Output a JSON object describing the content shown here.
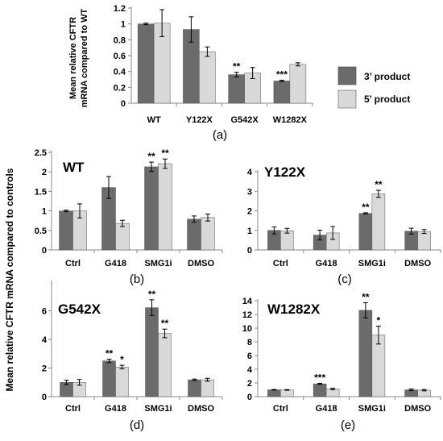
{
  "legend": [
    {
      "name": "3’ product",
      "color": "#6b6b6b"
    },
    {
      "name": "5’ product",
      "color": "#d9d9d9"
    }
  ],
  "shared_ylabel": "Mean relative CFTR mRNA compared to controls",
  "chart_data": [
    {
      "id": "a",
      "type": "bar",
      "panel_label": "(a)",
      "title": "",
      "ylabel": "Mean relative CFTR mRNA compared to WT",
      "categories": [
        "WT",
        "Y122X",
        "G542X",
        "W1282X"
      ],
      "ylim": [
        0,
        1.2
      ],
      "yticks": [
        0,
        0.2,
        0.4,
        0.6,
        0.8,
        1,
        1.2
      ],
      "ytick_labels": [
        "0",
        "0.2",
        "0.4",
        "0.6",
        "0.8",
        "1",
        "1.2"
      ],
      "series": [
        {
          "name": "3’ product",
          "color": "#6b6b6b",
          "values": [
            1.0,
            0.93,
            0.36,
            0.28
          ],
          "errors": [
            0.01,
            0.16,
            0.03,
            0.01
          ],
          "sig": [
            "",
            "",
            "**",
            "***"
          ]
        },
        {
          "name": "5’ product",
          "color": "#d9d9d9",
          "values": [
            1.01,
            0.65,
            0.38,
            0.49
          ],
          "errors": [
            0.17,
            0.06,
            0.07,
            0.02
          ],
          "sig": [
            "",
            "",
            "",
            ""
          ]
        }
      ]
    },
    {
      "id": "b",
      "type": "bar",
      "panel_label": "(b)",
      "title": "WT",
      "categories": [
        "Ctrl",
        "G418",
        "SMG1i",
        "DMSO"
      ],
      "ylim": [
        0,
        2.5
      ],
      "yticks": [
        0,
        0.5,
        1,
        1.5,
        2,
        2.5
      ],
      "ytick_labels": [
        "0",
        "0.5",
        "1",
        "1.5",
        "2",
        "2.5"
      ],
      "series": [
        {
          "name": "3’ product",
          "color": "#6b6b6b",
          "values": [
            1.0,
            1.6,
            2.13,
            0.79
          ],
          "errors": [
            0.02,
            0.28,
            0.12,
            0.08
          ],
          "sig": [
            "",
            "",
            "**",
            ""
          ]
        },
        {
          "name": "5’ product",
          "color": "#d9d9d9",
          "values": [
            1.0,
            0.68,
            2.21,
            0.83
          ],
          "errors": [
            0.18,
            0.08,
            0.12,
            0.09
          ],
          "sig": [
            "",
            "",
            "**",
            ""
          ]
        }
      ]
    },
    {
      "id": "c",
      "type": "bar",
      "panel_label": "(c)",
      "title": "Y122X",
      "categories": [
        "Ctrl",
        "G418",
        "SMG1i",
        "DMSO"
      ],
      "ylim": [
        0,
        4
      ],
      "yticks": [
        0,
        1,
        2,
        3,
        4
      ],
      "ytick_labels": [
        "0",
        "1",
        "2",
        "3",
        "4"
      ],
      "series": [
        {
          "name": "3’ product",
          "color": "#6b6b6b",
          "values": [
            1.0,
            0.76,
            1.87,
            0.96
          ],
          "errors": [
            0.18,
            0.25,
            0.03,
            0.15
          ],
          "sig": [
            "",
            "",
            "**",
            ""
          ]
        },
        {
          "name": "5’ product",
          "color": "#d9d9d9",
          "values": [
            0.98,
            0.87,
            2.87,
            0.94
          ],
          "errors": [
            0.12,
            0.33,
            0.18,
            0.1
          ],
          "sig": [
            "",
            "",
            "**",
            ""
          ]
        }
      ]
    },
    {
      "id": "d",
      "type": "bar",
      "panel_label": "(d)",
      "title": "G542X",
      "categories": [
        "Ctrl",
        "G418",
        "SMG1i",
        "DMSO"
      ],
      "ylim": [
        0,
        8
      ],
      "yticks": [
        0,
        2,
        4,
        6
      ],
      "ytick_labels": [
        "0",
        "2",
        "4",
        "6"
      ],
      "series": [
        {
          "name": "3’ product",
          "color": "#6b6b6b",
          "values": [
            1.0,
            2.5,
            6.22,
            1.18
          ],
          "errors": [
            0.15,
            0.12,
            0.55,
            0.05
          ],
          "sig": [
            "",
            "**",
            "**",
            ""
          ]
        },
        {
          "name": "5’ product",
          "color": "#d9d9d9",
          "values": [
            1.0,
            2.07,
            4.42,
            1.18
          ],
          "errors": [
            0.2,
            0.12,
            0.3,
            0.1
          ],
          "sig": [
            "",
            "*",
            "**",
            ""
          ]
        }
      ]
    },
    {
      "id": "e",
      "type": "bar",
      "panel_label": "(e)",
      "title": "W1282X",
      "categories": [
        "Ctrl",
        "G418",
        "SMG1i",
        "DMSO"
      ],
      "ylim": [
        0,
        14
      ],
      "yticks": [
        0,
        2,
        4,
        6,
        8,
        10,
        12,
        14
      ],
      "ytick_labels": [
        "0",
        "2",
        "4",
        "6",
        "8",
        "10",
        "12",
        "14"
      ],
      "series": [
        {
          "name": "3’ product",
          "color": "#6b6b6b",
          "values": [
            1.0,
            1.86,
            12.6,
            1.0
          ],
          "errors": [
            0.05,
            0.08,
            1.1,
            0.12
          ],
          "sig": [
            "",
            "***",
            "**",
            ""
          ]
        },
        {
          "name": "5’ product",
          "color": "#d9d9d9",
          "values": [
            0.98,
            1.12,
            8.98,
            0.95
          ],
          "errors": [
            0.05,
            0.12,
            1.3,
            0.1
          ],
          "sig": [
            "",
            "",
            "*",
            ""
          ]
        }
      ]
    }
  ]
}
